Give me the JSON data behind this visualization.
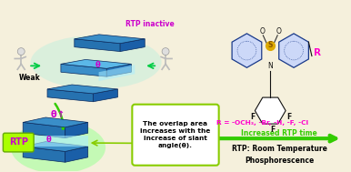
{
  "background_color": "#f5f0dc",
  "left_panel": {
    "rtp_inactive_color": "#cc00cc",
    "rtp_inactive_text": "RTP inactive",
    "weak_text": "Weak",
    "rtp_text": "RTP",
    "rtp_text_color": "#cc00cc",
    "theta_color": "#cc00cc",
    "arrow_color": "#33cc00",
    "box_text": "The overlap area\nincreases with the\nincrease of slant\nangle(θ).",
    "box_border_color": "#88cc00",
    "box_bg_color": "#ffffff"
  },
  "right_panel": {
    "r_text": "R = -OCH₃, -Br, -H, -F, -Cl",
    "r_text_color": "#ff00cc",
    "arrow_text": "Increased RTP time",
    "arrow_color": "#33cc00",
    "bottom_text": "RTP: Room Temperature\nPhosphorescence",
    "bottom_text_color": "#000000",
    "structure_color": "#1a3a8a",
    "r_label_color": "#ff00cc"
  }
}
